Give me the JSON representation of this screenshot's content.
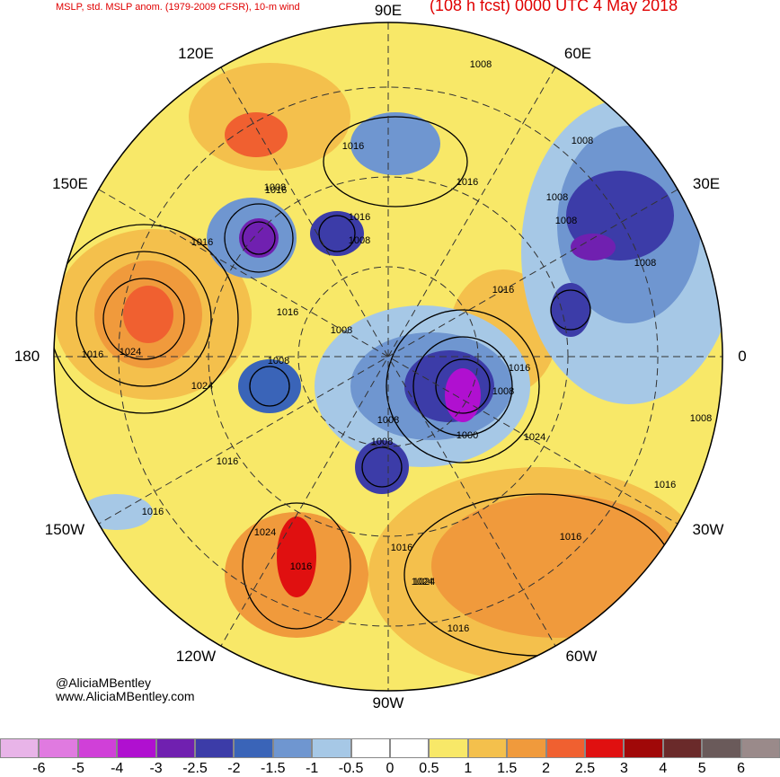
{
  "header": {
    "left_title": "MSLP, std. MSLP anom. (1979-2009 CFSR), 10-m wind",
    "right_title": "(108 h fcst) 0000 UTC 4 May 2018"
  },
  "longitude_labels": [
    "90E",
    "60E",
    "30E",
    "0",
    "30W",
    "60W",
    "90W",
    "120W",
    "150W",
    "180",
    "150E",
    "120E"
  ],
  "isobar_labels": [
    "1008",
    "1008",
    "1016",
    "1016",
    "1008",
    "1016",
    "1008",
    "1016",
    "1008",
    "1016",
    "1008",
    "1008",
    "1016",
    "1024",
    "1016",
    "1008",
    "1024",
    "1016",
    "1008",
    "1008",
    "1000",
    "1008",
    "1016",
    "1024",
    "1016",
    "1016",
    "1024",
    "1016",
    "1024",
    "1016",
    "1016",
    "1024",
    "1016",
    "1008",
    "1008",
    "1016"
  ],
  "credit": {
    "line1": "@AliciaMBentley",
    "line2": "www.AliciaMBentley.com"
  },
  "colorbar": {
    "ticks": [
      "-6",
      "-5",
      "-4",
      "-3",
      "-2.5",
      "-2",
      "-1.5",
      "-1",
      "-0.5",
      "0",
      "0.5",
      "1",
      "1.5",
      "2",
      "2.5",
      "3",
      "4",
      "5",
      "6"
    ],
    "colors": [
      "#e8b4e8",
      "#e07ae0",
      "#d040d8",
      "#b010d0",
      "#7020b0",
      "#3c3ca8",
      "#3a64b8",
      "#6f96d0",
      "#a6c8e6",
      "#ffffff",
      "#ffffff",
      "#f8e868",
      "#f4c04c",
      "#f09a3c",
      "#f06030",
      "#e01010",
      "#a00808",
      "#6a2a2a",
      "#6a5a5a",
      "#9a8a8a"
    ]
  }
}
